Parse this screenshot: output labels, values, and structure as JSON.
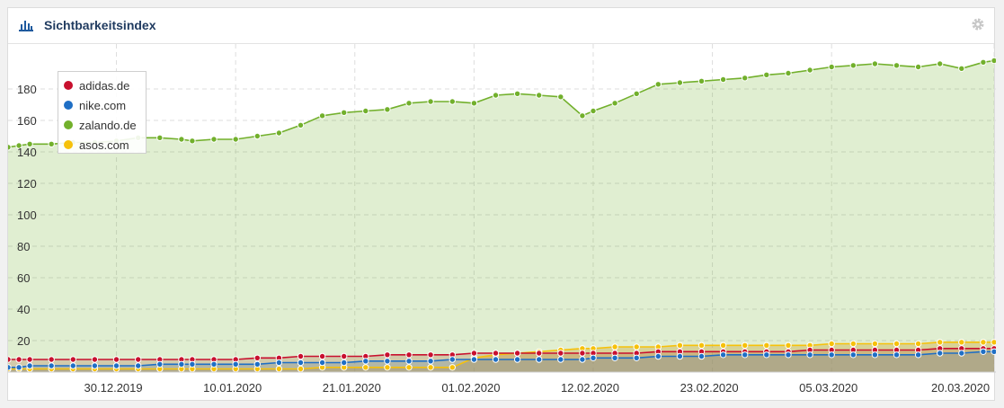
{
  "header": {
    "title": "Sichtbarkeitsindex",
    "chart_icon": "bar-chart-icon",
    "settings_icon": "gear-icon"
  },
  "colors": {
    "adidas": "#c8102e",
    "nike": "#1f6fc5",
    "zalando": "#72b02c",
    "asos": "#f6c10b"
  },
  "chart_data": {
    "type": "area",
    "title": "Sichtbarkeitsindex",
    "xlabel": "",
    "ylabel": "",
    "ylim": [
      0,
      200
    ],
    "yticks": [
      20,
      40,
      60,
      80,
      100,
      120,
      140,
      160,
      180
    ],
    "xtick_labels": [
      "30.12.2019",
      "10.01.2020",
      "21.01.2020",
      "01.02.2020",
      "12.02.2020",
      "23.02.2020",
      "05.03.2020",
      "20.03.2020"
    ],
    "legend_position": "top-left",
    "grid": true,
    "x": [
      "2019-12-20",
      "2019-12-21",
      "2019-12-22",
      "2019-12-24",
      "2019-12-26",
      "2019-12-28",
      "2019-12-30",
      "2020-01-01",
      "2020-01-03",
      "2020-01-05",
      "2020-01-06",
      "2020-01-08",
      "2020-01-10",
      "2020-01-12",
      "2020-01-14",
      "2020-01-16",
      "2020-01-18",
      "2020-01-20",
      "2020-01-22",
      "2020-01-24",
      "2020-01-26",
      "2020-01-28",
      "2020-01-30",
      "2020-02-01",
      "2020-02-03",
      "2020-02-05",
      "2020-02-07",
      "2020-02-09",
      "2020-02-11",
      "2020-02-12",
      "2020-02-14",
      "2020-02-16",
      "2020-02-18",
      "2020-02-20",
      "2020-02-22",
      "2020-02-24",
      "2020-02-26",
      "2020-02-28",
      "2020-03-01",
      "2020-03-03",
      "2020-03-05",
      "2020-03-07",
      "2020-03-09",
      "2020-03-11",
      "2020-03-13",
      "2020-03-15",
      "2020-03-17",
      "2020-03-19",
      "2020-03-20"
    ],
    "series": [
      {
        "name": "adidas.de",
        "color": "#c8102e",
        "values": [
          8,
          8,
          8,
          8,
          8,
          8,
          8,
          8,
          8,
          8,
          8,
          8,
          8,
          9,
          9,
          10,
          10,
          10,
          10,
          11,
          11,
          11,
          11,
          12,
          12,
          12,
          12,
          12,
          12,
          12,
          12,
          12,
          13,
          13,
          13,
          13,
          13,
          13,
          13,
          14,
          14,
          14,
          14,
          14,
          14,
          15,
          15,
          15,
          15
        ]
      },
      {
        "name": "nike.com",
        "color": "#1f6fc5",
        "values": [
          3,
          3,
          4,
          4,
          4,
          4,
          4,
          4,
          5,
          5,
          5,
          5,
          5,
          5,
          6,
          6,
          6,
          6,
          7,
          7,
          7,
          7,
          8,
          8,
          8,
          8,
          8,
          8,
          8,
          9,
          9,
          9,
          10,
          10,
          10,
          11,
          11,
          11,
          11,
          11,
          11,
          11,
          11,
          11,
          11,
          12,
          12,
          13,
          13
        ]
      },
      {
        "name": "zalando.de",
        "color": "#72b02c",
        "values": [
          143,
          144,
          145,
          145,
          146,
          146,
          147,
          149,
          149,
          148,
          147,
          148,
          148,
          150,
          152,
          157,
          163,
          165,
          166,
          167,
          171,
          172,
          172,
          171,
          176,
          177,
          176,
          175,
          163,
          166,
          171,
          177,
          183,
          184,
          185,
          186,
          187,
          189,
          190,
          192,
          194,
          195,
          196,
          195,
          194,
          196,
          193,
          197,
          198
        ]
      },
      {
        "name": "asos.com",
        "color": "#f6c10b",
        "values": [
          2,
          2,
          2,
          2,
          2,
          2,
          2,
          2,
          2,
          2,
          2,
          2,
          2,
          2,
          2,
          2,
          3,
          3,
          3,
          3,
          3,
          3,
          3,
          9,
          11,
          12,
          13,
          14,
          15,
          15,
          16,
          16,
          16,
          17,
          17,
          17,
          17,
          17,
          17,
          17,
          18,
          18,
          18,
          18,
          18,
          19,
          19,
          19,
          19
        ]
      }
    ]
  }
}
